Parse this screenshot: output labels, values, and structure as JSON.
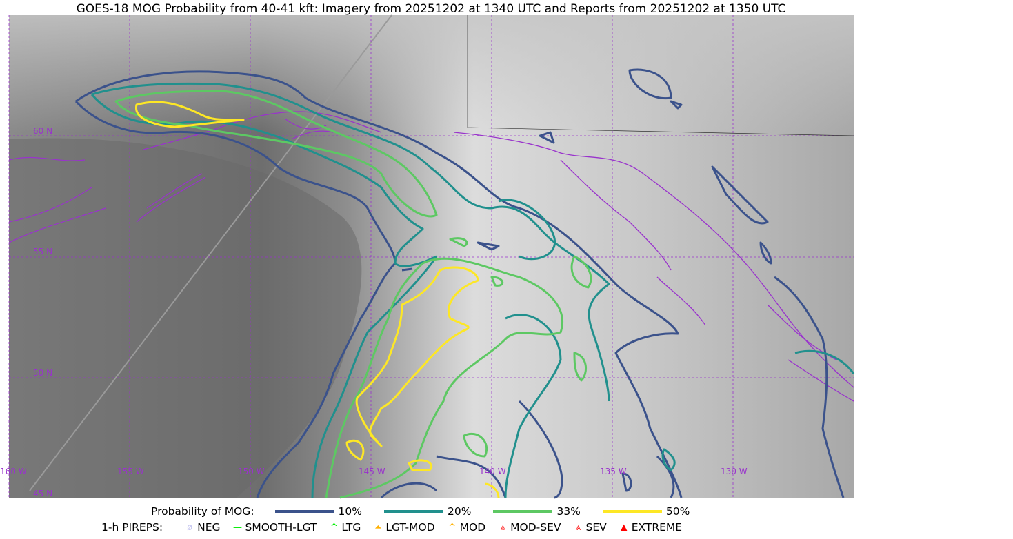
{
  "title": "GOES-18 MOG Probability from 40-41 kft: Imagery from 20251202 at 1340 UTC and Reports from 20251202 at 1350 UTC",
  "map": {
    "lon_labels": [
      "160 W",
      "155 W",
      "150 W",
      "145 W",
      "140 W",
      "135 W",
      "130 W"
    ],
    "lat_labels": [
      "60 N",
      "55 N",
      "50 N",
      "45 N"
    ],
    "grid_color": "#9933cc",
    "coast_color": "#9933cc"
  },
  "legend": {
    "prob_label": "Probability of MOG:",
    "prob_items": [
      {
        "label": "10%",
        "color": "#3b528b"
      },
      {
        "label": "20%",
        "color": "#21908d"
      },
      {
        "label": "33%",
        "color": "#5dc863"
      },
      {
        "label": "50%",
        "color": "#fde725"
      }
    ],
    "pirep_label": "1-h PIREPS:",
    "pirep_items": [
      {
        "label": "NEG",
        "color": "#c8c8f0",
        "icon": "neg-icon"
      },
      {
        "label": "SMOOTH-LGT",
        "color": "#00ee00",
        "icon": "line-icon"
      },
      {
        "label": "LTG",
        "color": "#00ee00",
        "icon": "caret-icon"
      },
      {
        "label": "LGT-MOD",
        "color": "#ffb000",
        "icon": "caret-bar-icon"
      },
      {
        "label": "MOD",
        "color": "#ffb000",
        "icon": "caret-icon"
      },
      {
        "label": "MOD-SEV",
        "color": "#ff2020",
        "icon": "double-caret-bar-icon"
      },
      {
        "label": "SEV",
        "color": "#ff2020",
        "icon": "double-caret-icon"
      },
      {
        "label": "EXTREME",
        "color": "#ff0000",
        "icon": "filled-triangle-icon"
      }
    ]
  }
}
